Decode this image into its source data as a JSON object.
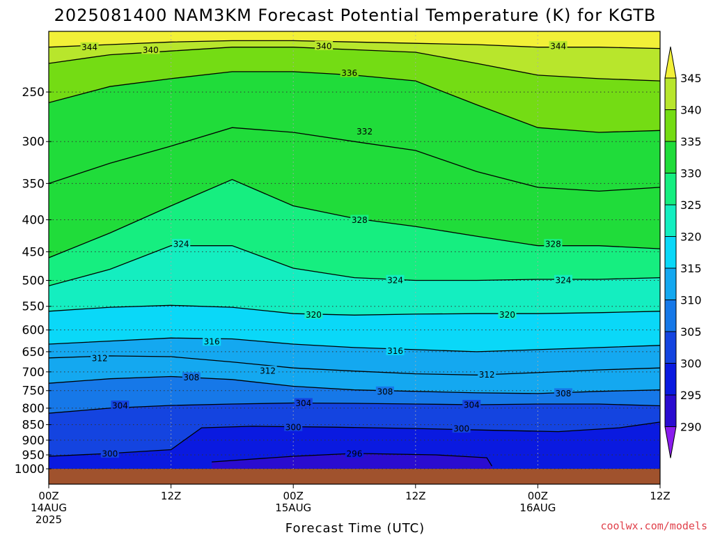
{
  "chart_data": {
    "type": "contour",
    "title": "2025081400 NAM3KM Forecast Potential Temperature (K) for KGTB",
    "xlabel": "Forecast Time (UTC)",
    "ylabel": "",
    "y_scale": "log",
    "y_inverted": true,
    "x_ticks": [
      {
        "hours": 0,
        "lines": [
          "00Z",
          "14AUG",
          "2025"
        ]
      },
      {
        "hours": 12,
        "lines": [
          "12Z"
        ]
      },
      {
        "hours": 24,
        "lines": [
          "00Z",
          "15AUG"
        ]
      },
      {
        "hours": 36,
        "lines": [
          "12Z"
        ]
      },
      {
        "hours": 48,
        "lines": [
          "00Z",
          "16AUG"
        ]
      },
      {
        "hours": 60,
        "lines": [
          "12Z"
        ]
      }
    ],
    "y_ticks": [
      250,
      300,
      350,
      400,
      450,
      500,
      550,
      600,
      650,
      700,
      750,
      800,
      850,
      900,
      950,
      1000
    ],
    "xlim_hours": [
      0,
      60
    ],
    "ylim_hPa": [
      200,
      1000
    ],
    "grid": true,
    "colorbar": {
      "levels": [
        290,
        295,
        300,
        305,
        310,
        315,
        320,
        325,
        330,
        335,
        340,
        345
      ],
      "colors": [
        "#8a1cee",
        "#2a0cd0",
        "#0a1ae0",
        "#1444e0",
        "#1678e8",
        "#14a8f0",
        "#0ad8f8",
        "#14eec0",
        "#16ee80",
        "#20dc3a",
        "#74dc14",
        "#b8e62c",
        "#f2f038"
      ]
    },
    "series": [
      {
        "level": 296,
        "points": [
          [
            16.0,
            975
          ],
          [
            24.0,
            955
          ],
          [
            30.0,
            945
          ],
          [
            38.0,
            950
          ],
          [
            43.0,
            960
          ],
          [
            43.5,
            990
          ]
        ]
      },
      {
        "level": 300,
        "points": [
          [
            0,
            955
          ],
          [
            6,
            945
          ],
          [
            12,
            932
          ],
          [
            15,
            860
          ],
          [
            20,
            855
          ],
          [
            28,
            858
          ],
          [
            36,
            862
          ],
          [
            44,
            868
          ],
          [
            50,
            872
          ],
          [
            56,
            860
          ],
          [
            60,
            842
          ]
        ]
      },
      {
        "level": 304,
        "points": [
          [
            0,
            815
          ],
          [
            6,
            800
          ],
          [
            12,
            792
          ],
          [
            18,
            788
          ],
          [
            24,
            785
          ],
          [
            30,
            786
          ],
          [
            36,
            788
          ],
          [
            42,
            790
          ],
          [
            48,
            788
          ],
          [
            54,
            788
          ],
          [
            60,
            793
          ]
        ]
      },
      {
        "level": 308,
        "points": [
          [
            0,
            730
          ],
          [
            6,
            718
          ],
          [
            12,
            712
          ],
          [
            18,
            720
          ],
          [
            24,
            738
          ],
          [
            30,
            748
          ],
          [
            36,
            752
          ],
          [
            42,
            756
          ],
          [
            48,
            758
          ],
          [
            54,
            752
          ],
          [
            60,
            748
          ]
        ]
      },
      {
        "level": 312,
        "points": [
          [
            0,
            665
          ],
          [
            6,
            660
          ],
          [
            12,
            662
          ],
          [
            18,
            675
          ],
          [
            24,
            690
          ],
          [
            30,
            698
          ],
          [
            36,
            705
          ],
          [
            42,
            708
          ],
          [
            48,
            702
          ],
          [
            54,
            695
          ],
          [
            60,
            690
          ]
        ]
      },
      {
        "level": 316,
        "points": [
          [
            0,
            632
          ],
          [
            6,
            625
          ],
          [
            12,
            618
          ],
          [
            18,
            620
          ],
          [
            24,
            632
          ],
          [
            30,
            640
          ],
          [
            36,
            645
          ],
          [
            42,
            650
          ],
          [
            48,
            645
          ],
          [
            54,
            640
          ],
          [
            60,
            635
          ]
        ]
      },
      {
        "level": 320,
        "points": [
          [
            0,
            560
          ],
          [
            6,
            552
          ],
          [
            12,
            548
          ],
          [
            18,
            552
          ],
          [
            24,
            565
          ],
          [
            30,
            568
          ],
          [
            36,
            566
          ],
          [
            42,
            565
          ],
          [
            48,
            565
          ],
          [
            54,
            563
          ],
          [
            60,
            560
          ]
        ]
      },
      {
        "level": 324,
        "points": [
          [
            0,
            510
          ],
          [
            6,
            480
          ],
          [
            12,
            440
          ],
          [
            18,
            440
          ],
          [
            24,
            478
          ],
          [
            30,
            495
          ],
          [
            36,
            500
          ],
          [
            42,
            500
          ],
          [
            48,
            498
          ],
          [
            54,
            498
          ],
          [
            60,
            495
          ]
        ]
      },
      {
        "level": 328,
        "points": [
          [
            0,
            460
          ],
          [
            6,
            420
          ],
          [
            12,
            380
          ],
          [
            18,
            345
          ],
          [
            24,
            380
          ],
          [
            30,
            398
          ],
          [
            36,
            410
          ],
          [
            42,
            425
          ],
          [
            48,
            440
          ],
          [
            54,
            440
          ],
          [
            60,
            445
          ]
        ]
      },
      {
        "level": 332,
        "points": [
          [
            0,
            350
          ],
          [
            6,
            325
          ],
          [
            12,
            305
          ],
          [
            18,
            285
          ],
          [
            24,
            290
          ],
          [
            30,
            300
          ],
          [
            36,
            310
          ],
          [
            42,
            335
          ],
          [
            48,
            355
          ],
          [
            54,
            360
          ],
          [
            60,
            355
          ]
        ]
      },
      {
        "level": 336,
        "points": [
          [
            0,
            260
          ],
          [
            6,
            245
          ],
          [
            12,
            238
          ],
          [
            18,
            232
          ],
          [
            24,
            232
          ],
          [
            30,
            235
          ],
          [
            36,
            240
          ],
          [
            42,
            262
          ],
          [
            48,
            285
          ],
          [
            54,
            290
          ],
          [
            60,
            288
          ]
        ]
      },
      {
        "level": 340,
        "points": [
          [
            0,
            225
          ],
          [
            6,
            218
          ],
          [
            12,
            215
          ],
          [
            18,
            212
          ],
          [
            24,
            212
          ],
          [
            30,
            214
          ],
          [
            36,
            216
          ],
          [
            42,
            225
          ],
          [
            48,
            235
          ],
          [
            54,
            238
          ],
          [
            60,
            240
          ]
        ]
      },
      {
        "level": 344,
        "points": [
          [
            0,
            212
          ],
          [
            6,
            210
          ],
          [
            12,
            208
          ],
          [
            18,
            207
          ],
          [
            24,
            207
          ],
          [
            30,
            208
          ],
          [
            36,
            209
          ],
          [
            42,
            210
          ],
          [
            48,
            212
          ],
          [
            54,
            212
          ],
          [
            60,
            213
          ]
        ]
      }
    ],
    "contour_labels": [
      {
        "text": "344",
        "hours": 4.0,
        "p": 212
      },
      {
        "text": "340",
        "hours": 10.0,
        "p": 214
      },
      {
        "text": "340",
        "hours": 27.0,
        "p": 211
      },
      {
        "text": "344",
        "hours": 50.0,
        "p": 211
      },
      {
        "text": "336",
        "hours": 29.5,
        "p": 233
      },
      {
        "text": "332",
        "hours": 31.0,
        "p": 289
      },
      {
        "text": "328",
        "hours": 30.5,
        "p": 400
      },
      {
        "text": "328",
        "hours": 49.5,
        "p": 437
      },
      {
        "text": "324",
        "hours": 13.0,
        "p": 437
      },
      {
        "text": "324",
        "hours": 34.0,
        "p": 499
      },
      {
        "text": "324",
        "hours": 50.5,
        "p": 499
      },
      {
        "text": "320",
        "hours": 26.0,
        "p": 567
      },
      {
        "text": "320",
        "hours": 45.0,
        "p": 567
      },
      {
        "text": "316",
        "hours": 16.0,
        "p": 626
      },
      {
        "text": "316",
        "hours": 34.0,
        "p": 648
      },
      {
        "text": "312",
        "hours": 5.0,
        "p": 665
      },
      {
        "text": "312",
        "hours": 21.5,
        "p": 697
      },
      {
        "text": "312",
        "hours": 43.0,
        "p": 707
      },
      {
        "text": "308",
        "hours": 14.0,
        "p": 714
      },
      {
        "text": "308",
        "hours": 33.0,
        "p": 752
      },
      {
        "text": "308",
        "hours": 50.5,
        "p": 757
      },
      {
        "text": "304",
        "hours": 7.0,
        "p": 792
      },
      {
        "text": "304",
        "hours": 25.0,
        "p": 785
      },
      {
        "text": "304",
        "hours": 41.5,
        "p": 790
      },
      {
        "text": "300",
        "hours": 6.0,
        "p": 945
      },
      {
        "text": "300",
        "hours": 24.0,
        "p": 857
      },
      {
        "text": "300",
        "hours": 40.5,
        "p": 862
      },
      {
        "text": "296",
        "hours": 30.0,
        "p": 945
      }
    ]
  },
  "credit": "coolwx.com/models"
}
